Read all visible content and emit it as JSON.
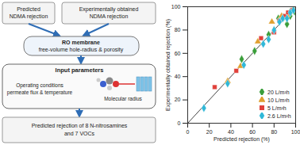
{
  "diagram": {
    "nodes": [
      {
        "label": [
          "Predicted",
          "NDMA rejection"
        ]
      },
      {
        "label": [
          "Experimentally obtained",
          "NDMA rejection"
        ]
      },
      {
        "label": [
          "RO membrane",
          "free-volume hole-radius & porosity"
        ]
      },
      {
        "label": [
          "Input parameters"
        ]
      },
      {
        "label": [
          "Operating conditions",
          "permeate flux & temperature"
        ]
      },
      {
        "label": [
          "Molecular radius"
        ]
      },
      {
        "label": [
          "Predicted rejection of 8 N-nitrosamines",
          "and 7 VOCs"
        ]
      }
    ]
  },
  "chart_data": {
    "type": "scatter",
    "xlabel": "Predicted rejection (%)",
    "ylabel": "Experimentally obtained rejection (%)",
    "xlim": [
      0,
      100
    ],
    "ylim": [
      0,
      100
    ],
    "xticks": [
      0,
      20,
      40,
      60,
      80,
      100
    ],
    "yticks": [
      0,
      20,
      40,
      60,
      80,
      100
    ],
    "grid": false,
    "legend": "bottom-right",
    "series": [
      {
        "name": "20 L/m²h",
        "color": "#3a9e3a",
        "marker": "diamond",
        "x": [
          50,
          62,
          75,
          84,
          89,
          92,
          95,
          96,
          99
        ],
        "values": [
          55,
          62,
          76,
          90,
          91,
          85,
          92,
          96,
          96
        ]
      },
      {
        "name": "10 L/m²h",
        "color": "#e0a030",
        "marker": "triangle",
        "x": [
          37,
          49,
          65,
          78,
          87,
          92,
          95,
          98
        ],
        "values": [
          36,
          49,
          70,
          87,
          92,
          93,
          96,
          98
        ]
      },
      {
        "name": "5 L/m²h",
        "color": "#e0403a",
        "marker": "square",
        "x": [
          25,
          45,
          68,
          80,
          85,
          90,
          93,
          97
        ],
        "values": [
          31,
          45,
          73,
          78,
          88,
          92,
          95,
          97
        ]
      },
      {
        "name": "2.6 L/m²h",
        "color": "#30b8d8",
        "marker": "diamond",
        "x": [
          15,
          37,
          52,
          70,
          75,
          80,
          85,
          88,
          92,
          95,
          98
        ],
        "values": [
          13,
          34,
          50,
          68,
          72,
          80,
          87,
          90,
          90,
          95,
          97
        ]
      }
    ]
  }
}
